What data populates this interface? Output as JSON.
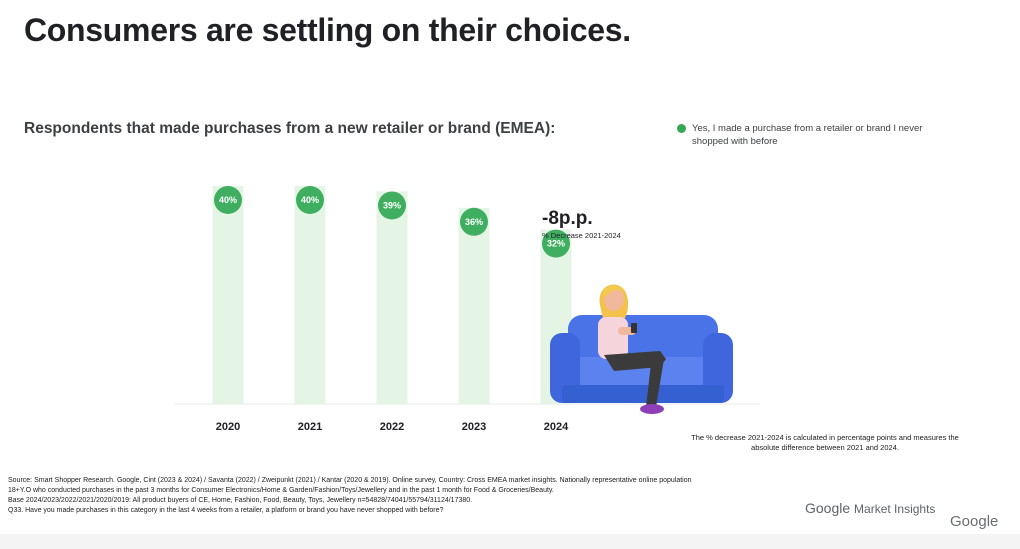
{
  "slide": {
    "title": "Consumers are settling on their choices.",
    "subtitle": "Respondents that made purchases from a new retailer or brand (EMEA):",
    "legend": {
      "text": "Yes, I made a purchase from a retailer or brand I never shopped with before",
      "color": "#34a853"
    },
    "annotation": {
      "value": "-8p.p.",
      "label": "% Decrease 2021-2024"
    },
    "note": "The % decrease 2021-2024 is calculated in percentage points and measures the absolute difference between 2021 and 2024.",
    "source_lines": [
      "Source: Smart Shopper Research. Google, Cint (2023 & 2024) / Savanta (2022) / Zweipunkt (2021) / Kantar (2020 & 2019). Online survey, Country: Cross EMEA market insights. Nationally representative online population",
      "18+Y.O who conducted purchases in the past 3 months for Consumer Electronics/Home & Garden/Fashion/Toys/Jewellery and in the past 1 month for Food & Groceries/Beauty.",
      "Base 2024/2023/2022/2021/2020/2019: All product buyers of CE, Home, Fashion, Food, Beauty, Toys, Jewellery n=54828/74041/55794/31124/17380.",
      "Q33. Have you made purchases in this category in the last 4 weeks from a retailer, a platform or brand you have never shopped with before?"
    ],
    "brand": {
      "google": "Google",
      "market_insights": "Market Insights",
      "mark": "Google"
    }
  },
  "chart_data": {
    "type": "bar",
    "categories": [
      "2020",
      "2021",
      "2022",
      "2023",
      "2024"
    ],
    "series": [
      {
        "values": [
          40,
          40,
          39,
          36,
          32
        ]
      }
    ],
    "data_labels": [
      "40%",
      "40%",
      "39%",
      "36%",
      "32%"
    ],
    "ylim": [
      0,
      40
    ],
    "grid": false,
    "legend_position": "top-right",
    "colors": {
      "bar": "#e4f5e6",
      "dot": "#3fae60"
    }
  }
}
